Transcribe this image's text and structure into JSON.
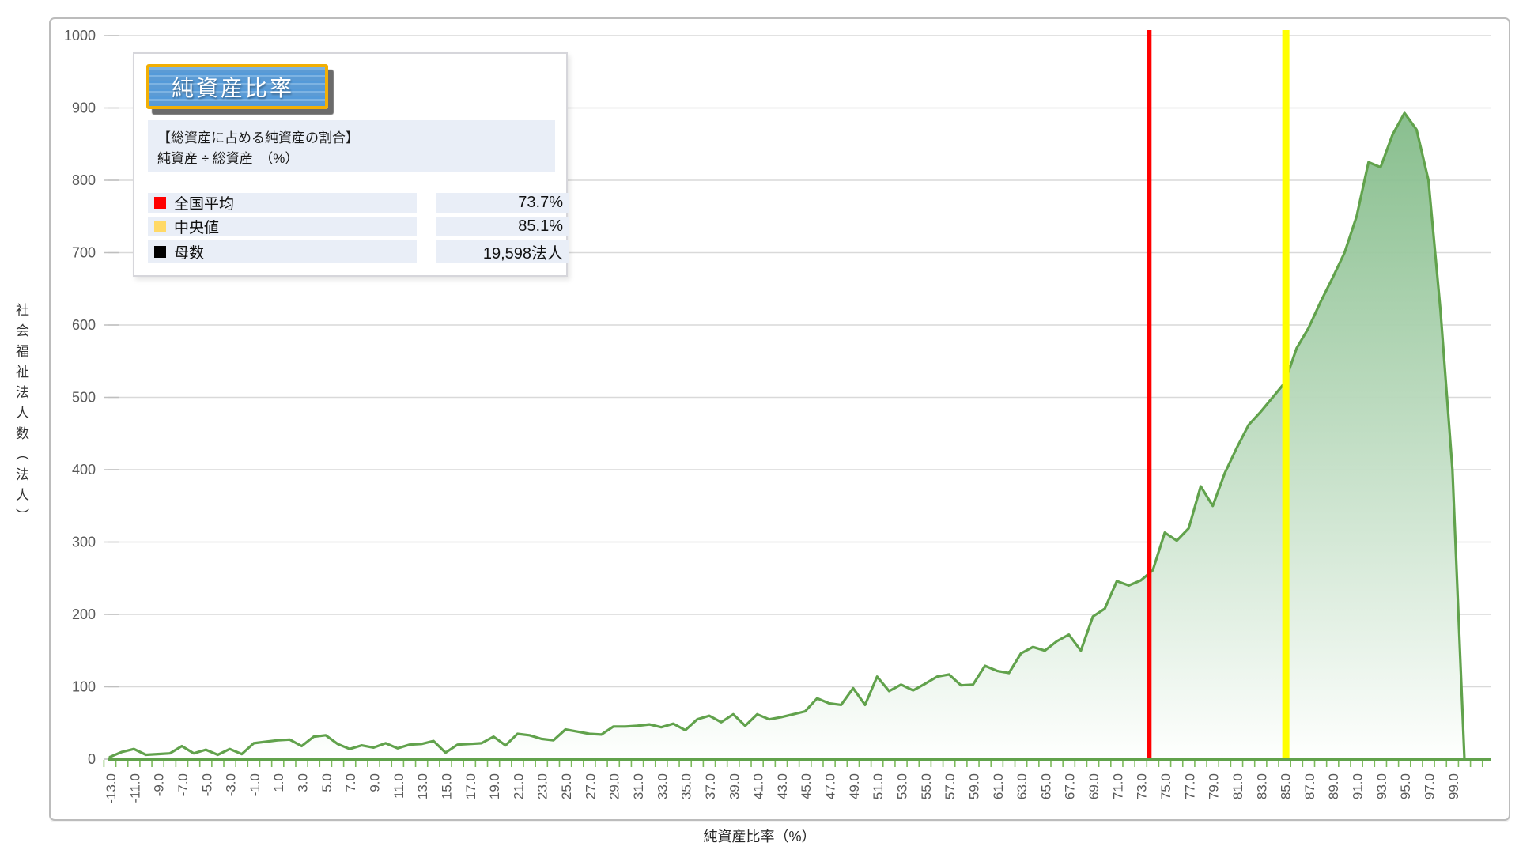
{
  "info_box": {
    "badge_title": "純資産比率",
    "desc_line1": "【総資産に占める純資産の割合】",
    "desc_line2": "純資産 ÷ 総資産　（%）",
    "rows": [
      {
        "chip_color": "#ff0000",
        "label": "全国平均",
        "value": "73.7%"
      },
      {
        "chip_color": "#ffd966",
        "label": "中央値",
        "value": "85.1%"
      },
      {
        "chip_color": "#000000",
        "label": "母数",
        "value": "19,598法人"
      }
    ]
  },
  "chart_data": {
    "type": "area",
    "title": "純資産比率",
    "xlabel": "純資産比率（%）",
    "ylabel": "社会福祉法人数（法人）",
    "x_start": -13,
    "x_step": 1,
    "x_label_every": 2,
    "x_label_decimals": 1,
    "ylim": [
      0,
      1000
    ],
    "y_tick_step": 100,
    "grid": true,
    "y_tick_labels": [
      "0",
      "100",
      "200",
      "300",
      "400",
      "500",
      "600",
      "700",
      "800",
      "900",
      "1000"
    ],
    "x_tick_labels": [
      "-13.0",
      "-11.0",
      "-9.0",
      "-7.0",
      "-5.0",
      "-3.0",
      "-1.0",
      "1.0",
      "3.0",
      "5.0",
      "7.0",
      "9.0",
      "11.0",
      "13.0",
      "15.0",
      "17.0",
      "19.0",
      "21.0",
      "23.0",
      "25.0",
      "27.0",
      "29.0",
      "31.0",
      "33.0",
      "35.0",
      "37.0",
      "39.0",
      "41.0",
      "43.0",
      "45.0",
      "47.0",
      "49.0",
      "51.0",
      "53.0",
      "55.0",
      "57.0",
      "59.0",
      "61.0",
      "63.0",
      "65.0",
      "67.0",
      "69.0",
      "71.0",
      "73.0",
      "75.0",
      "77.0",
      "79.0",
      "81.0",
      "83.0",
      "85.0",
      "87.0",
      "89.0",
      "91.0",
      "93.0",
      "95.0",
      "97.0",
      "99.0"
    ],
    "values": [
      3,
      10,
      14,
      6,
      7,
      8,
      18,
      8,
      13,
      6,
      14,
      7,
      22,
      24,
      26,
      27,
      18,
      31,
      33,
      21,
      14,
      19,
      16,
      22,
      15,
      20,
      21,
      25,
      9,
      20,
      21,
      22,
      31,
      19,
      35,
      33,
      28,
      26,
      41,
      38,
      35,
      34,
      45,
      45,
      46,
      48,
      44,
      49,
      40,
      55,
      60,
      51,
      62,
      46,
      62,
      55,
      58,
      62,
      66,
      84,
      77,
      75,
      98,
      75,
      114,
      94,
      103,
      95,
      104,
      114,
      117,
      102,
      103,
      129,
      122,
      119,
      146,
      155,
      150,
      163,
      172,
      150,
      197,
      208,
      246,
      240,
      247,
      261,
      313,
      302,
      319,
      377,
      350,
      395,
      430,
      462,
      480,
      500,
      520,
      568,
      596,
      632,
      665,
      700,
      750,
      825,
      818,
      863,
      893,
      870,
      800,
      620,
      400,
      0
    ],
    "series_color": "#61a24c",
    "area_gradient_top": "#80ba86",
    "area_gradient_bottom": "#fefffe",
    "axis_line_color": "#61a24c",
    "tick_color": "#7cbb5b",
    "gridline_color": "#d9d9d9",
    "tick_label_color": "#595959",
    "reference_lines": [
      {
        "name": "mean",
        "label": "全国平均",
        "x_value": 73.7,
        "color": "#ff0000",
        "width": 6
      },
      {
        "name": "median",
        "label": "中央値",
        "x_value": 85.1,
        "color": "#ffff00",
        "width": 9
      }
    ]
  }
}
